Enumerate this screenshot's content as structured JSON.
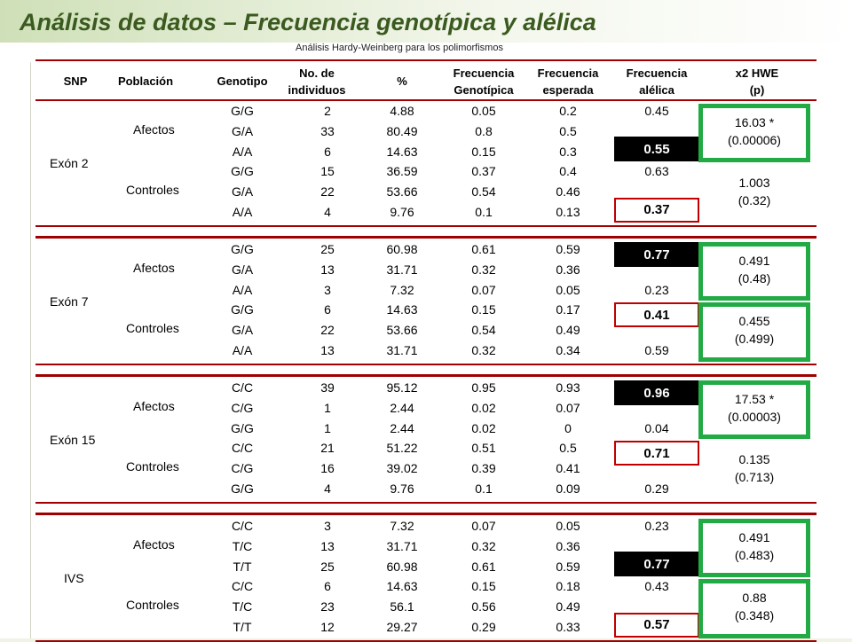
{
  "header": {
    "title": "Análisis de datos – Frecuencia genotípica y alélica",
    "subtitle": "Análisis Hardy-Weinberg para los polimorfismos"
  },
  "columns": {
    "snp": "SNP",
    "poblacion": "Población",
    "genotipo": "Genotipo",
    "n1": "No. de",
    "n2": "individuos",
    "pct": "%",
    "fg1": "Frecuencia",
    "fg2": "Genotípica",
    "fe1": "Frecuencia",
    "fe2": "esperada",
    "fa1": "Frecuencia",
    "fa2": "alélica",
    "hwe1": "x2     HWE",
    "hwe2": "(p)"
  },
  "colors": {
    "accent_green": "#22aa44",
    "rule_red": "#a00000",
    "title_green": "#3a5a1f"
  },
  "blocks": [
    {
      "snp": "Exón 2",
      "groups": [
        {
          "name": "Afectos",
          "rows": [
            {
              "g": "G/G",
              "n": "2",
              "pct": "4.88",
              "fg": "0.05",
              "fe": "0.2",
              "fa": "0.45"
            },
            {
              "g": "G/A",
              "n": "33",
              "pct": "80.49",
              "fg": "0.8",
              "fe": "0.5",
              "fa": ""
            },
            {
              "g": "A/A",
              "n": "6",
              "pct": "14.63",
              "fg": "0.15",
              "fe": "0.3",
              "fa": ""
            }
          ],
          "highlight": "0.55",
          "hwe_value": "16.03 *",
          "hwe_p": "(0.00006)"
        },
        {
          "name": "Controles",
          "rows": [
            {
              "g": "G/G",
              "n": "15",
              "pct": "36.59",
              "fg": "0.37",
              "fe": "0.4",
              "fa": "0.63"
            },
            {
              "g": "G/A",
              "n": "22",
              "pct": "53.66",
              "fg": "0.54",
              "fe": "0.46",
              "fa": ""
            },
            {
              "g": "A/A",
              "n": "4",
              "pct": "9.76",
              "fg": "0.1",
              "fe": "0.13",
              "fa": ""
            }
          ],
          "highlight": "0.37",
          "hwe_value": "1.003",
          "hwe_p": "(0.32)"
        }
      ]
    },
    {
      "snp": "Exón 7",
      "groups": [
        {
          "name": "Afectos",
          "rows": [
            {
              "g": "G/G",
              "n": "25",
              "pct": "60.98",
              "fg": "0.61",
              "fe": "0.59",
              "fa": ""
            },
            {
              "g": "G/A",
              "n": "13",
              "pct": "31.71",
              "fg": "0.32",
              "fe": "0.36",
              "fa": ""
            },
            {
              "g": "A/A",
              "n": "3",
              "pct": "7.32",
              "fg": "0.07",
              "fe": "0.05",
              "fa": "0.23"
            }
          ],
          "highlight": "0.77",
          "hwe_value": "0.491",
          "hwe_p": "(0.48)"
        },
        {
          "name": "Controles",
          "rows": [
            {
              "g": "G/G",
              "n": "6",
              "pct": "14.63",
              "fg": "0.15",
              "fe": "0.17",
              "fa": ""
            },
            {
              "g": "G/A",
              "n": "22",
              "pct": "53.66",
              "fg": "0.54",
              "fe": "0.49",
              "fa": ""
            },
            {
              "g": "A/A",
              "n": "13",
              "pct": "31.71",
              "fg": "0.32",
              "fe": "0.34",
              "fa": "0.59"
            }
          ],
          "highlight": "0.41",
          "hwe_value": "0.455",
          "hwe_p": "(0.499)"
        }
      ]
    },
    {
      "snp": "Exón 15",
      "groups": [
        {
          "name": "Afectos",
          "rows": [
            {
              "g": "C/C",
              "n": "39",
              "pct": "95.12",
              "fg": "0.95",
              "fe": "0.93",
              "fa": ""
            },
            {
              "g": "C/G",
              "n": "1",
              "pct": "2.44",
              "fg": "0.02",
              "fe": "0.07",
              "fa": ""
            },
            {
              "g": "G/G",
              "n": "1",
              "pct": "2.44",
              "fg": "0.02",
              "fe": "0",
              "fa": "0.04"
            }
          ],
          "highlight": "0.96",
          "hwe_value": "17.53 *",
          "hwe_p": "(0.00003)"
        },
        {
          "name": "Controles",
          "rows": [
            {
              "g": "C/C",
              "n": "21",
              "pct": "51.22",
              "fg": "0.51",
              "fe": "0.5",
              "fa": ""
            },
            {
              "g": "C/G",
              "n": "16",
              "pct": "39.02",
              "fg": "0.39",
              "fe": "0.41",
              "fa": ""
            },
            {
              "g": "G/G",
              "n": "4",
              "pct": "9.76",
              "fg": "0.1",
              "fe": "0.09",
              "fa": "0.29"
            }
          ],
          "highlight": "0.71",
          "hwe_value": "0.135",
          "hwe_p": "(0.713)"
        }
      ]
    },
    {
      "snp": "IVS",
      "groups": [
        {
          "name": "Afectos",
          "rows": [
            {
              "g": "C/C",
              "n": "3",
              "pct": "7.32",
              "fg": "0.07",
              "fe": "0.05",
              "fa": "0.23"
            },
            {
              "g": "T/C",
              "n": "13",
              "pct": "31.71",
              "fg": "0.32",
              "fe": "0.36",
              "fa": ""
            },
            {
              "g": "T/T",
              "n": "25",
              "pct": "60.98",
              "fg": "0.61",
              "fe": "0.59",
              "fa": ""
            }
          ],
          "highlight": "0.77",
          "hwe_value": "0.491",
          "hwe_p": "(0.483)"
        },
        {
          "name": "Controles",
          "rows": [
            {
              "g": "C/C",
              "n": "6",
              "pct": "14.63",
              "fg": "0.15",
              "fe": "0.18",
              "fa": "0.43"
            },
            {
              "g": "T/C",
              "n": "23",
              "pct": "56.1",
              "fg": "0.56",
              "fe": "0.49",
              "fa": ""
            },
            {
              "g": "T/T",
              "n": "12",
              "pct": "29.27",
              "fg": "0.29",
              "fe": "0.33",
              "fa": ""
            }
          ],
          "highlight": "0.57",
          "hwe_value": "0.88",
          "hwe_p": "(0.348)"
        }
      ]
    }
  ]
}
